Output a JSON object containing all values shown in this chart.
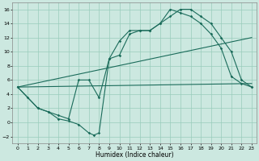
{
  "xlabel": "Humidex (Indice chaleur)",
  "xlim": [
    -0.5,
    23.5
  ],
  "ylim": [
    -3,
    17
  ],
  "xticks": [
    0,
    1,
    2,
    3,
    4,
    5,
    6,
    7,
    8,
    9,
    10,
    11,
    12,
    13,
    14,
    15,
    16,
    17,
    18,
    19,
    20,
    21,
    22,
    23
  ],
  "yticks": [
    -2,
    0,
    2,
    4,
    6,
    8,
    10,
    12,
    14,
    16
  ],
  "bg_color": "#cce8e0",
  "grid_color": "#99ccbb",
  "line_color": "#1a6b5a",
  "line1_x": [
    0,
    1,
    2,
    3,
    4,
    5,
    6,
    7,
    7.5,
    8,
    9,
    10,
    11,
    12,
    13,
    14,
    15,
    16,
    17,
    18,
    19,
    20,
    21,
    22,
    23
  ],
  "line1_y": [
    5,
    3.5,
    2,
    1.5,
    0.5,
    0.2,
    -0.3,
    -1.5,
    -1.8,
    -1.5,
    9,
    11.5,
    13,
    13,
    13,
    14,
    16,
    15.5,
    15,
    14,
    12.5,
    10.5,
    6.5,
    5.5,
    5
  ],
  "line2_x": [
    0,
    2,
    3,
    4,
    5,
    6,
    7,
    8,
    9,
    10,
    11,
    12,
    13,
    14,
    15,
    16,
    17,
    18,
    19,
    20,
    21,
    22,
    23
  ],
  "line2_y": [
    5,
    2,
    1.5,
    1,
    0.5,
    6,
    6,
    3.5,
    9,
    9.5,
    12.5,
    13,
    13,
    14,
    15,
    16,
    16,
    15,
    14,
    12,
    10,
    6,
    5
  ],
  "line3_x": [
    0,
    23
  ],
  "line3_y": [
    5,
    5.5
  ],
  "line4_x": [
    0,
    23
  ],
  "line4_y": [
    5,
    12
  ]
}
